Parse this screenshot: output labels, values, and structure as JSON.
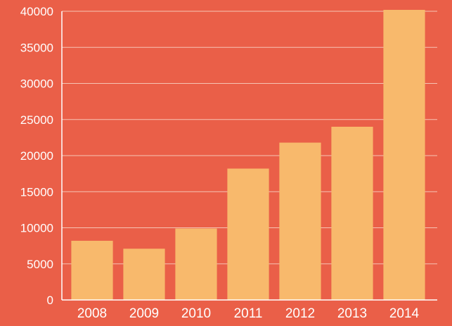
{
  "colors": {
    "background": "#ea5f48",
    "bar": "#f8b96c",
    "gridline": "#f6c4b4",
    "text": "#ffffff"
  },
  "chart_data": {
    "type": "bar",
    "title": "",
    "xlabel": "",
    "ylabel": "",
    "categories": [
      "2008",
      "2009",
      "2010",
      "2011",
      "2012",
      "2013",
      "2014"
    ],
    "values": [
      8200,
      7100,
      9900,
      18200,
      21800,
      24000,
      40200
    ],
    "ylim": [
      0,
      40000
    ],
    "yticks": [
      "0",
      "5000",
      "10000",
      "15000",
      "20000",
      "25000",
      "30000",
      "35000",
      "40000"
    ],
    "grid": true,
    "legend": "none"
  }
}
